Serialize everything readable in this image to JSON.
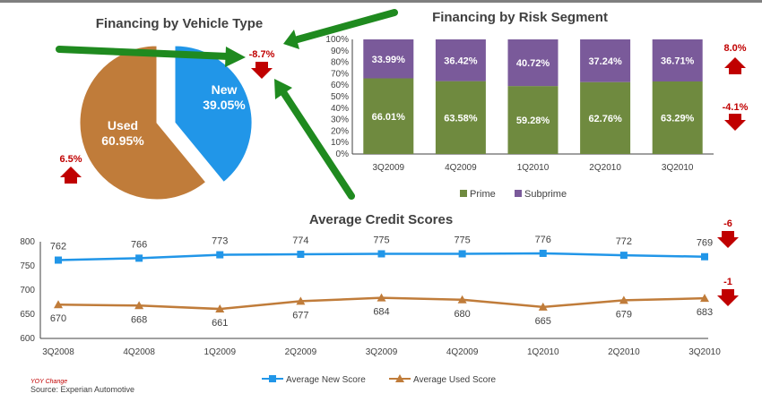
{
  "charts": {
    "pie": {
      "title": "Financing by Vehicle Type",
      "new_label": "New",
      "new_pct": "39.05%",
      "used_label": "Used",
      "used_pct": "60.95%",
      "new_change": "-8.7%",
      "used_change": "6.5%"
    },
    "risk": {
      "title": "Financing by Risk Segment",
      "prime_change": "-4.1%",
      "subprime_change": "8.0%",
      "legend_prime": "Prime",
      "legend_subprime": "Subprime"
    },
    "credit": {
      "title": "Average Credit Scores",
      "new_change": "-6",
      "used_change": "-1",
      "legend_new": "Average New Score",
      "legend_used": "Average Used Score"
    }
  },
  "footer": {
    "yoy": "YOY Change",
    "source": "Source: Experian Automotive"
  },
  "colors": {
    "new": "#2196e8",
    "used": "#c07c3a",
    "prime": "#6f8a3f",
    "subprime": "#7a5a9a",
    "change_red": "#c00000",
    "arrow_green": "#1f8a1f"
  },
  "chart_data": [
    {
      "type": "pie",
      "title": "Financing by Vehicle Type",
      "slices": [
        {
          "label": "New",
          "value": 39.05
        },
        {
          "label": "Used",
          "value": 60.95
        }
      ]
    },
    {
      "type": "bar",
      "stacked": true,
      "title": "Financing by Risk Segment",
      "categories": [
        "3Q2009",
        "4Q2009",
        "1Q2010",
        "2Q2010",
        "3Q2010"
      ],
      "series": [
        {
          "name": "Prime",
          "values": [
            66.01,
            63.58,
            59.28,
            62.76,
            63.29
          ],
          "labels": [
            "66.01%",
            "63.58%",
            "59.28%",
            "62.76%",
            "63.29%"
          ]
        },
        {
          "name": "Subprime",
          "values": [
            33.99,
            36.42,
            40.72,
            37.24,
            36.71
          ],
          "labels": [
            "33.99%",
            "36.42%",
            "40.72%",
            "37.24%",
            "36.71%"
          ]
        }
      ],
      "ylim": [
        0,
        100
      ],
      "yticks": [
        "0%",
        "10%",
        "20%",
        "30%",
        "40%",
        "50%",
        "60%",
        "70%",
        "80%",
        "90%",
        "100%"
      ],
      "legend": "bottom"
    },
    {
      "type": "line",
      "title": "Average Credit Scores",
      "categories": [
        "3Q2008",
        "4Q2008",
        "1Q2009",
        "2Q2009",
        "3Q2009",
        "4Q2009",
        "1Q2010",
        "2Q2010",
        "3Q2010"
      ],
      "series": [
        {
          "name": "Average New Score",
          "values": [
            762,
            766,
            773,
            774,
            775,
            775,
            776,
            772,
            769
          ]
        },
        {
          "name": "Average Used Score",
          "values": [
            670,
            668,
            661,
            677,
            684,
            680,
            665,
            679,
            683
          ]
        }
      ],
      "ylim": [
        600,
        800
      ],
      "yticks": [
        600,
        650,
        700,
        750,
        800
      ],
      "grid": false,
      "legend": "bottom"
    }
  ]
}
